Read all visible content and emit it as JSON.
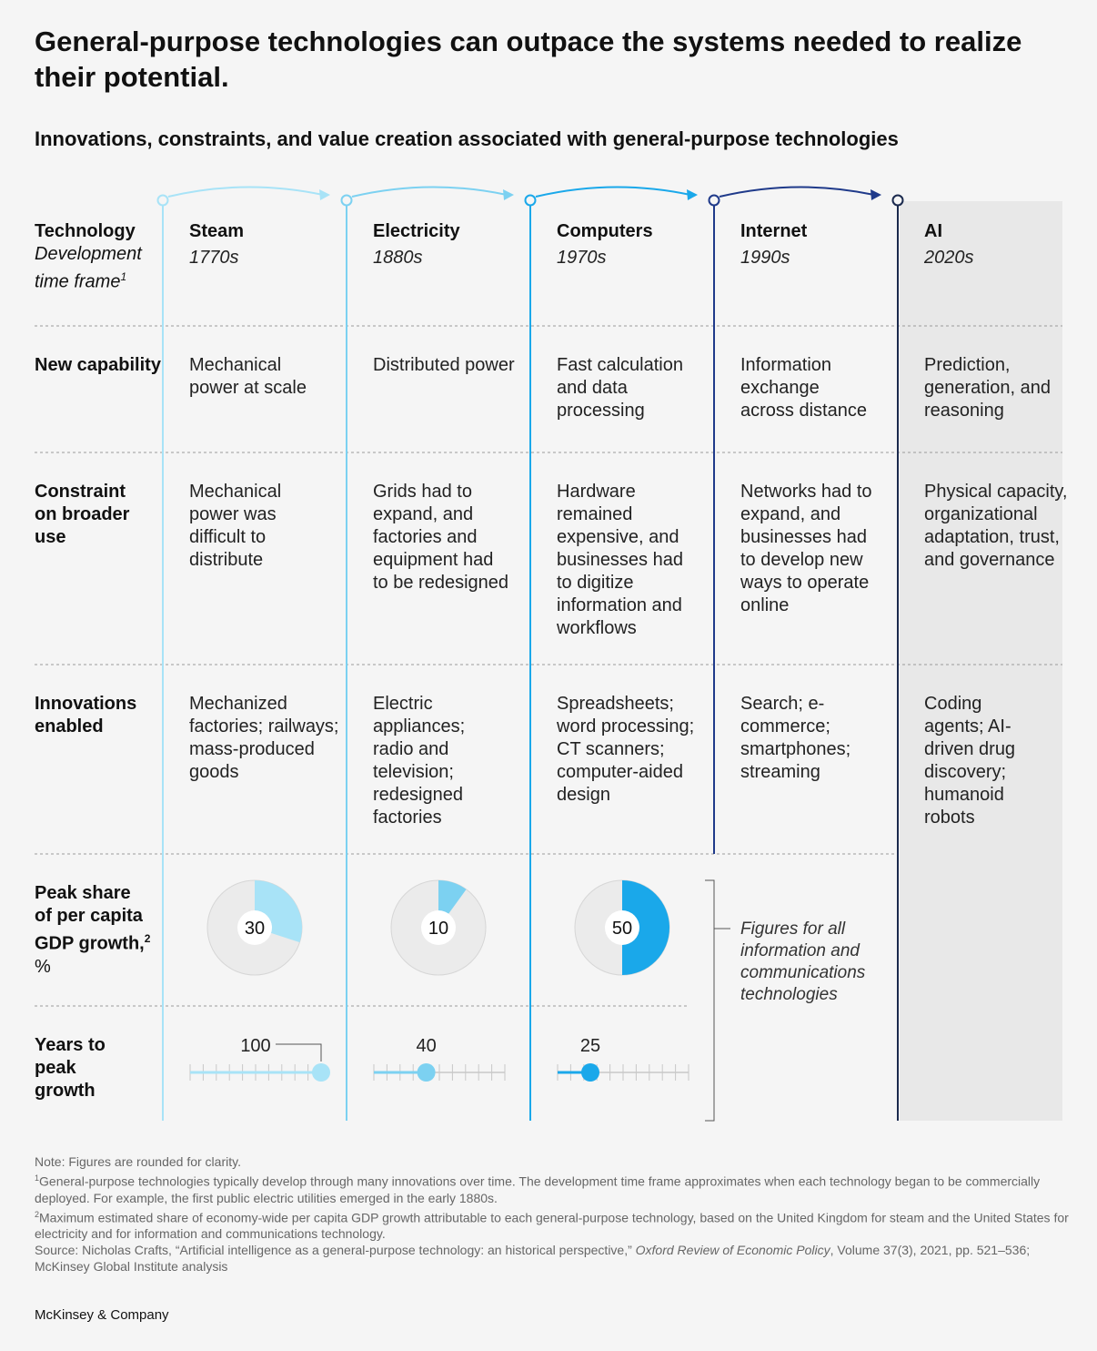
{
  "title": "General-purpose technologies can outpace the systems needed to realize their potential.",
  "subtitle": "Innovations, constraints, and value creation associated with general-purpose technologies",
  "row_labels": {
    "technology": "Technology",
    "timeframe": "Development time frame",
    "timeframe_footnote": "1",
    "capability": "New capability",
    "constraint": "Constraint on broader use",
    "innovations": "Innovations enabled",
    "gdp": "Peak share of per capita GDP growth,",
    "gdp_footnote": "2",
    "gdp_unit": " %",
    "years": "Years to peak growth"
  },
  "technologies": [
    {
      "name": "Steam",
      "year": "1770s",
      "capability": "Mechanical power at scale",
      "constraint": "Mechanical power was difficult to distribute",
      "innovations": "Mechanized factories; railways; mass-produced goods",
      "color": "#a8e3f7"
    },
    {
      "name": "Electricity",
      "year": "1880s",
      "capability": "Distributed power",
      "constraint": "Grids had to expand, and factories and equipment had to be redesigned",
      "innovations": "Electric appliances; radio and television; redesigned factories",
      "color": "#7cd1f1"
    },
    {
      "name": "Computers",
      "year": "1970s",
      "capability": "Fast calculation and data processing",
      "constraint": "Hardware remained expensive, and businesses had to digitize information and workflows",
      "innovations": "Spreadsheets; word processing; CT scanners; computer-aided design",
      "color": "#1aa8ea"
    },
    {
      "name": "Internet",
      "year": "1990s",
      "capability": "Information exchange across distance",
      "constraint": "Networks had to expand, and businesses had to develop new ways to operate online",
      "innovations": "Search; e-commerce; smartphones; streaming",
      "color": "#1f3a8a"
    },
    {
      "name": "AI",
      "year": "2020s",
      "capability": "Prediction, generation, and reasoning",
      "constraint": "Physical capacity, organizational adaptation, trust, and governance",
      "innovations": "Coding agents; AI-driven drug discovery; humanoid robots",
      "color": "#1b2a4e"
    }
  ],
  "figures_note": "Figures for all information and communications technologies",
  "chart_data": [
    {
      "type": "pie",
      "title": "Peak share of per capita GDP growth, %",
      "categories": [
        "Steam",
        "Electricity",
        "Computers"
      ],
      "values": [
        30,
        10,
        50
      ],
      "colors": [
        "#a8e3f7",
        "#7cd1f1",
        "#1aa8ea"
      ]
    },
    {
      "type": "scatter",
      "title": "Years to peak growth",
      "categories": [
        "Steam",
        "Electricity",
        "Computers"
      ],
      "values": [
        100,
        40,
        25
      ],
      "xlim": [
        0,
        100
      ],
      "colors": [
        "#a8e3f7",
        "#7cd1f1",
        "#1aa8ea"
      ]
    }
  ],
  "notes": {
    "note": "Note: Figures are rounded for clarity.",
    "fn1_mark": "1",
    "fn1": "General-purpose technologies typically develop through many innovations over time. The development time frame approximates when each technology began to be commercially deployed. For example, the first public electric utilities emerged in the early 1880s.",
    "fn2_mark": "2",
    "fn2": "Maximum estimated share of economy-wide per capita GDP growth attributable to each general-purpose technology, based on the United Kingdom for steam and the United States for electricity and for information and communications technology.",
    "source_a": "Source: Nicholas Crafts, “Artificial intelligence as a general-purpose technology: an historical perspective,” ",
    "source_journal": "Oxford Review of Economic Policy",
    "source_b": ", Volume 37(3), 2021, pp. 521–536; McKinsey Global Institute analysis"
  },
  "brand": "McKinsey & Company"
}
